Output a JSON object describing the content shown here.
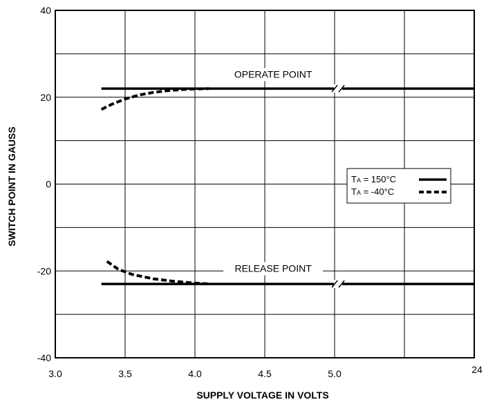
{
  "chart_data": {
    "type": "line",
    "title": "",
    "xlabel": "SUPPLY VOLTAGE IN VOLTS",
    "ylabel": "SWITCH POINT IN GAUSS",
    "x_axis": {
      "note": "axis is broken between 5.0 and 24",
      "ticks": [
        {
          "value": 3.0,
          "label": "3.0"
        },
        {
          "value": 3.5,
          "label": "3.5"
        },
        {
          "value": 4.0,
          "label": "4.0"
        },
        {
          "value": 4.5,
          "label": "4.5"
        },
        {
          "value": 5.0,
          "label": "5.0"
        },
        {
          "value": 24,
          "label": "24"
        }
      ],
      "xlim": [
        3.0,
        24
      ]
    },
    "ylim": [
      -40,
      40
    ],
    "y_ticks": [
      {
        "value": 40,
        "label": "40"
      },
      {
        "value": 20,
        "label": "20"
      },
      {
        "value": 0,
        "label": "0"
      },
      {
        "value": -20,
        "label": "-20"
      },
      {
        "value": -40,
        "label": "-40"
      }
    ],
    "grid": true,
    "legend": {
      "placement": "right",
      "entries": [
        {
          "sub_main": "T",
          "sub": "A",
          "rest": " = 150°C",
          "style": "solid"
        },
        {
          "sub_main": "T",
          "sub": "A",
          "rest": " = -40°C",
          "style": "dashed"
        }
      ]
    },
    "series": [
      {
        "key": "operate_150",
        "style": "solid",
        "points": [
          [
            3.33,
            22
          ],
          [
            24,
            22
          ]
        ]
      },
      {
        "key": "release_150",
        "style": "solid",
        "points": [
          [
            3.33,
            -23
          ],
          [
            24,
            -23
          ]
        ]
      },
      {
        "key": "operate_m40",
        "style": "dashed",
        "points": [
          [
            3.33,
            17.2
          ],
          [
            3.4,
            18.3
          ],
          [
            3.5,
            19.6
          ],
          [
            3.6,
            20.5
          ],
          [
            3.7,
            21.1
          ],
          [
            3.8,
            21.5
          ],
          [
            3.95,
            21.85
          ],
          [
            4.1,
            22
          ]
        ]
      },
      {
        "key": "release_m40",
        "style": "dashed",
        "points": [
          [
            3.37,
            -17.8
          ],
          [
            3.45,
            -19.6
          ],
          [
            3.55,
            -20.8
          ],
          [
            3.7,
            -21.8
          ],
          [
            3.85,
            -22.4
          ],
          [
            4.0,
            -22.8
          ],
          [
            4.1,
            -23
          ]
        ]
      }
    ],
    "annotations": [
      {
        "text": "OPERATE POINT",
        "x": 4.56,
        "y": 24.5
      },
      {
        "text": "RELEASE POINT",
        "x": 4.56,
        "y": -20.2
      }
    ],
    "break_x": 5.48
  }
}
